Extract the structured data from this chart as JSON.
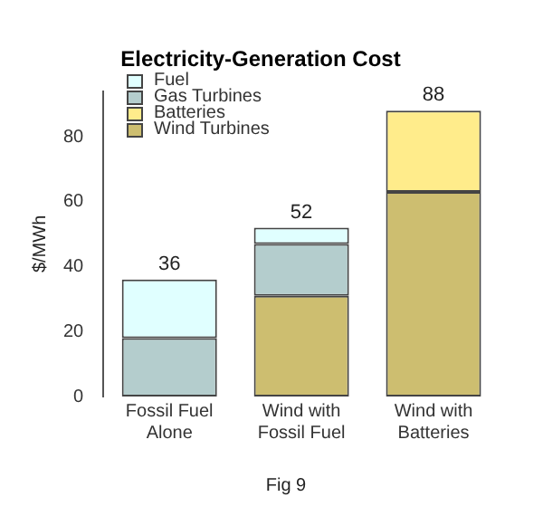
{
  "chart_data": {
    "type": "bar",
    "stacked": true,
    "title": "Electricity-Generation Cost",
    "ylabel": "$/MWh",
    "categories": [
      "Fossil Fuel Alone",
      "Wind with Fossil Fuel",
      "Wind with Batteries"
    ],
    "series": [
      {
        "name": "Wind Turbines",
        "color": "#cdbe70",
        "values": [
          null,
          31,
          63
        ]
      },
      {
        "name": "Batteries",
        "color": "#ffec8b",
        "values": [
          null,
          null,
          25
        ]
      },
      {
        "name": "Gas Turbines",
        "color": "#b4cdcd",
        "values": [
          18,
          16,
          null
        ]
      },
      {
        "name": "Fuel",
        "color": "#e0ffff",
        "values": [
          18,
          5,
          null
        ]
      }
    ],
    "totals": [
      "36",
      "52",
      "88"
    ],
    "ylim": [
      0,
      94
    ],
    "yticks": [
      0,
      20,
      40,
      60,
      80
    ],
    "grid": false,
    "legend": "top left",
    "annotations": [
      "Fig 9"
    ]
  }
}
